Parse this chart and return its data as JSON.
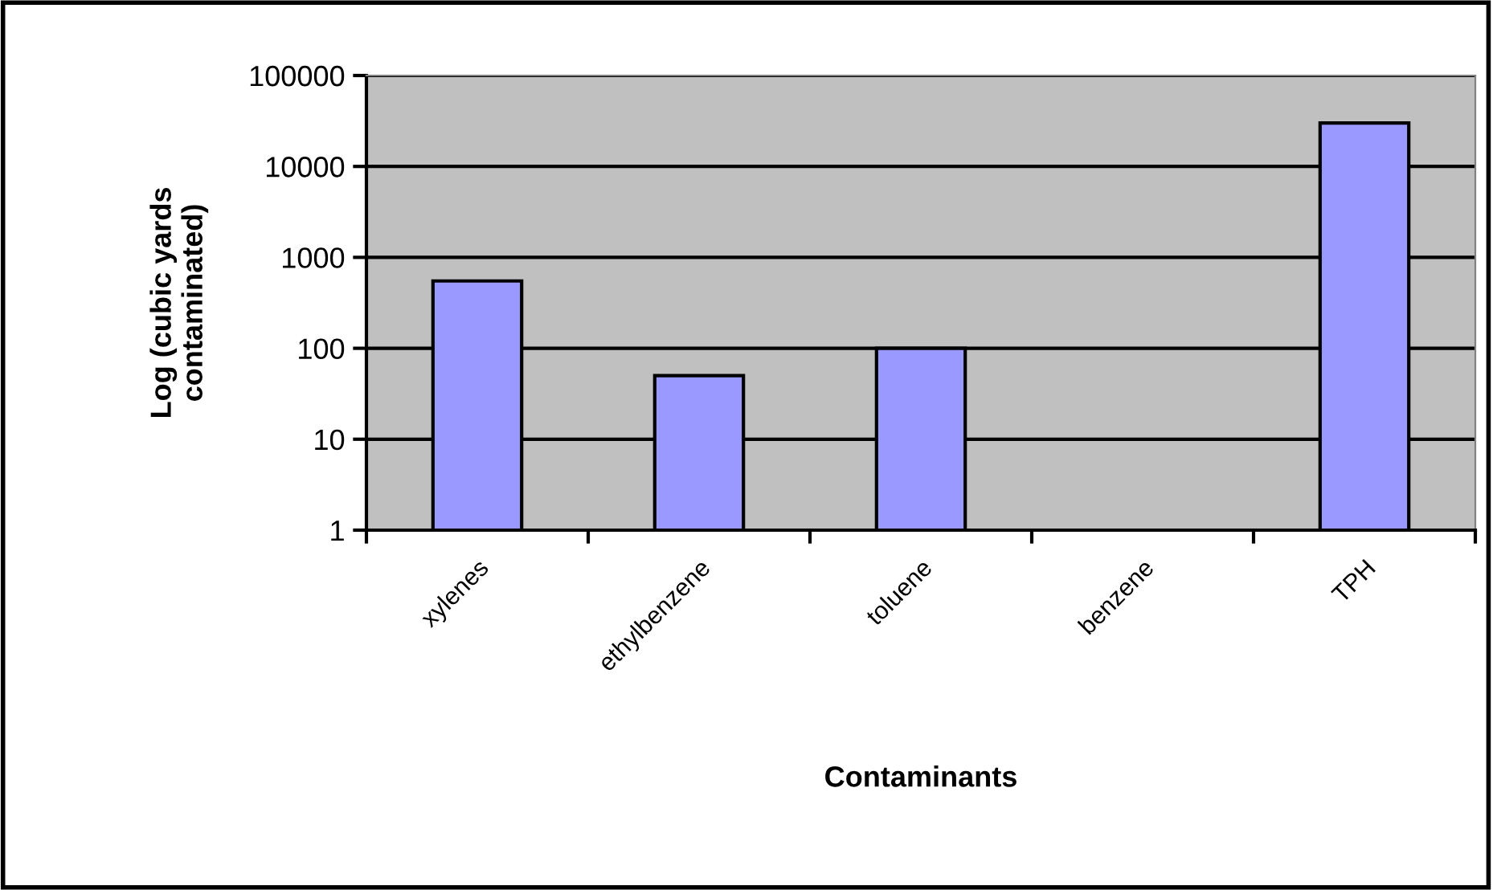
{
  "chart_data": {
    "type": "bar",
    "xlabel": "Contaminants",
    "ylabel": "Log (cubic yards\ncontaminated)",
    "categories": [
      "xylenes",
      "ethylbenzene",
      "toluene",
      "benzene",
      "TPH"
    ],
    "values": [
      550,
      50,
      100,
      null,
      30000
    ],
    "color": "#9999ff",
    "log": true,
    "ylim": [
      1,
      100000
    ],
    "yticks": [
      1,
      10,
      100,
      1000,
      10000,
      100000
    ],
    "grid": "y",
    "legend": false
  }
}
